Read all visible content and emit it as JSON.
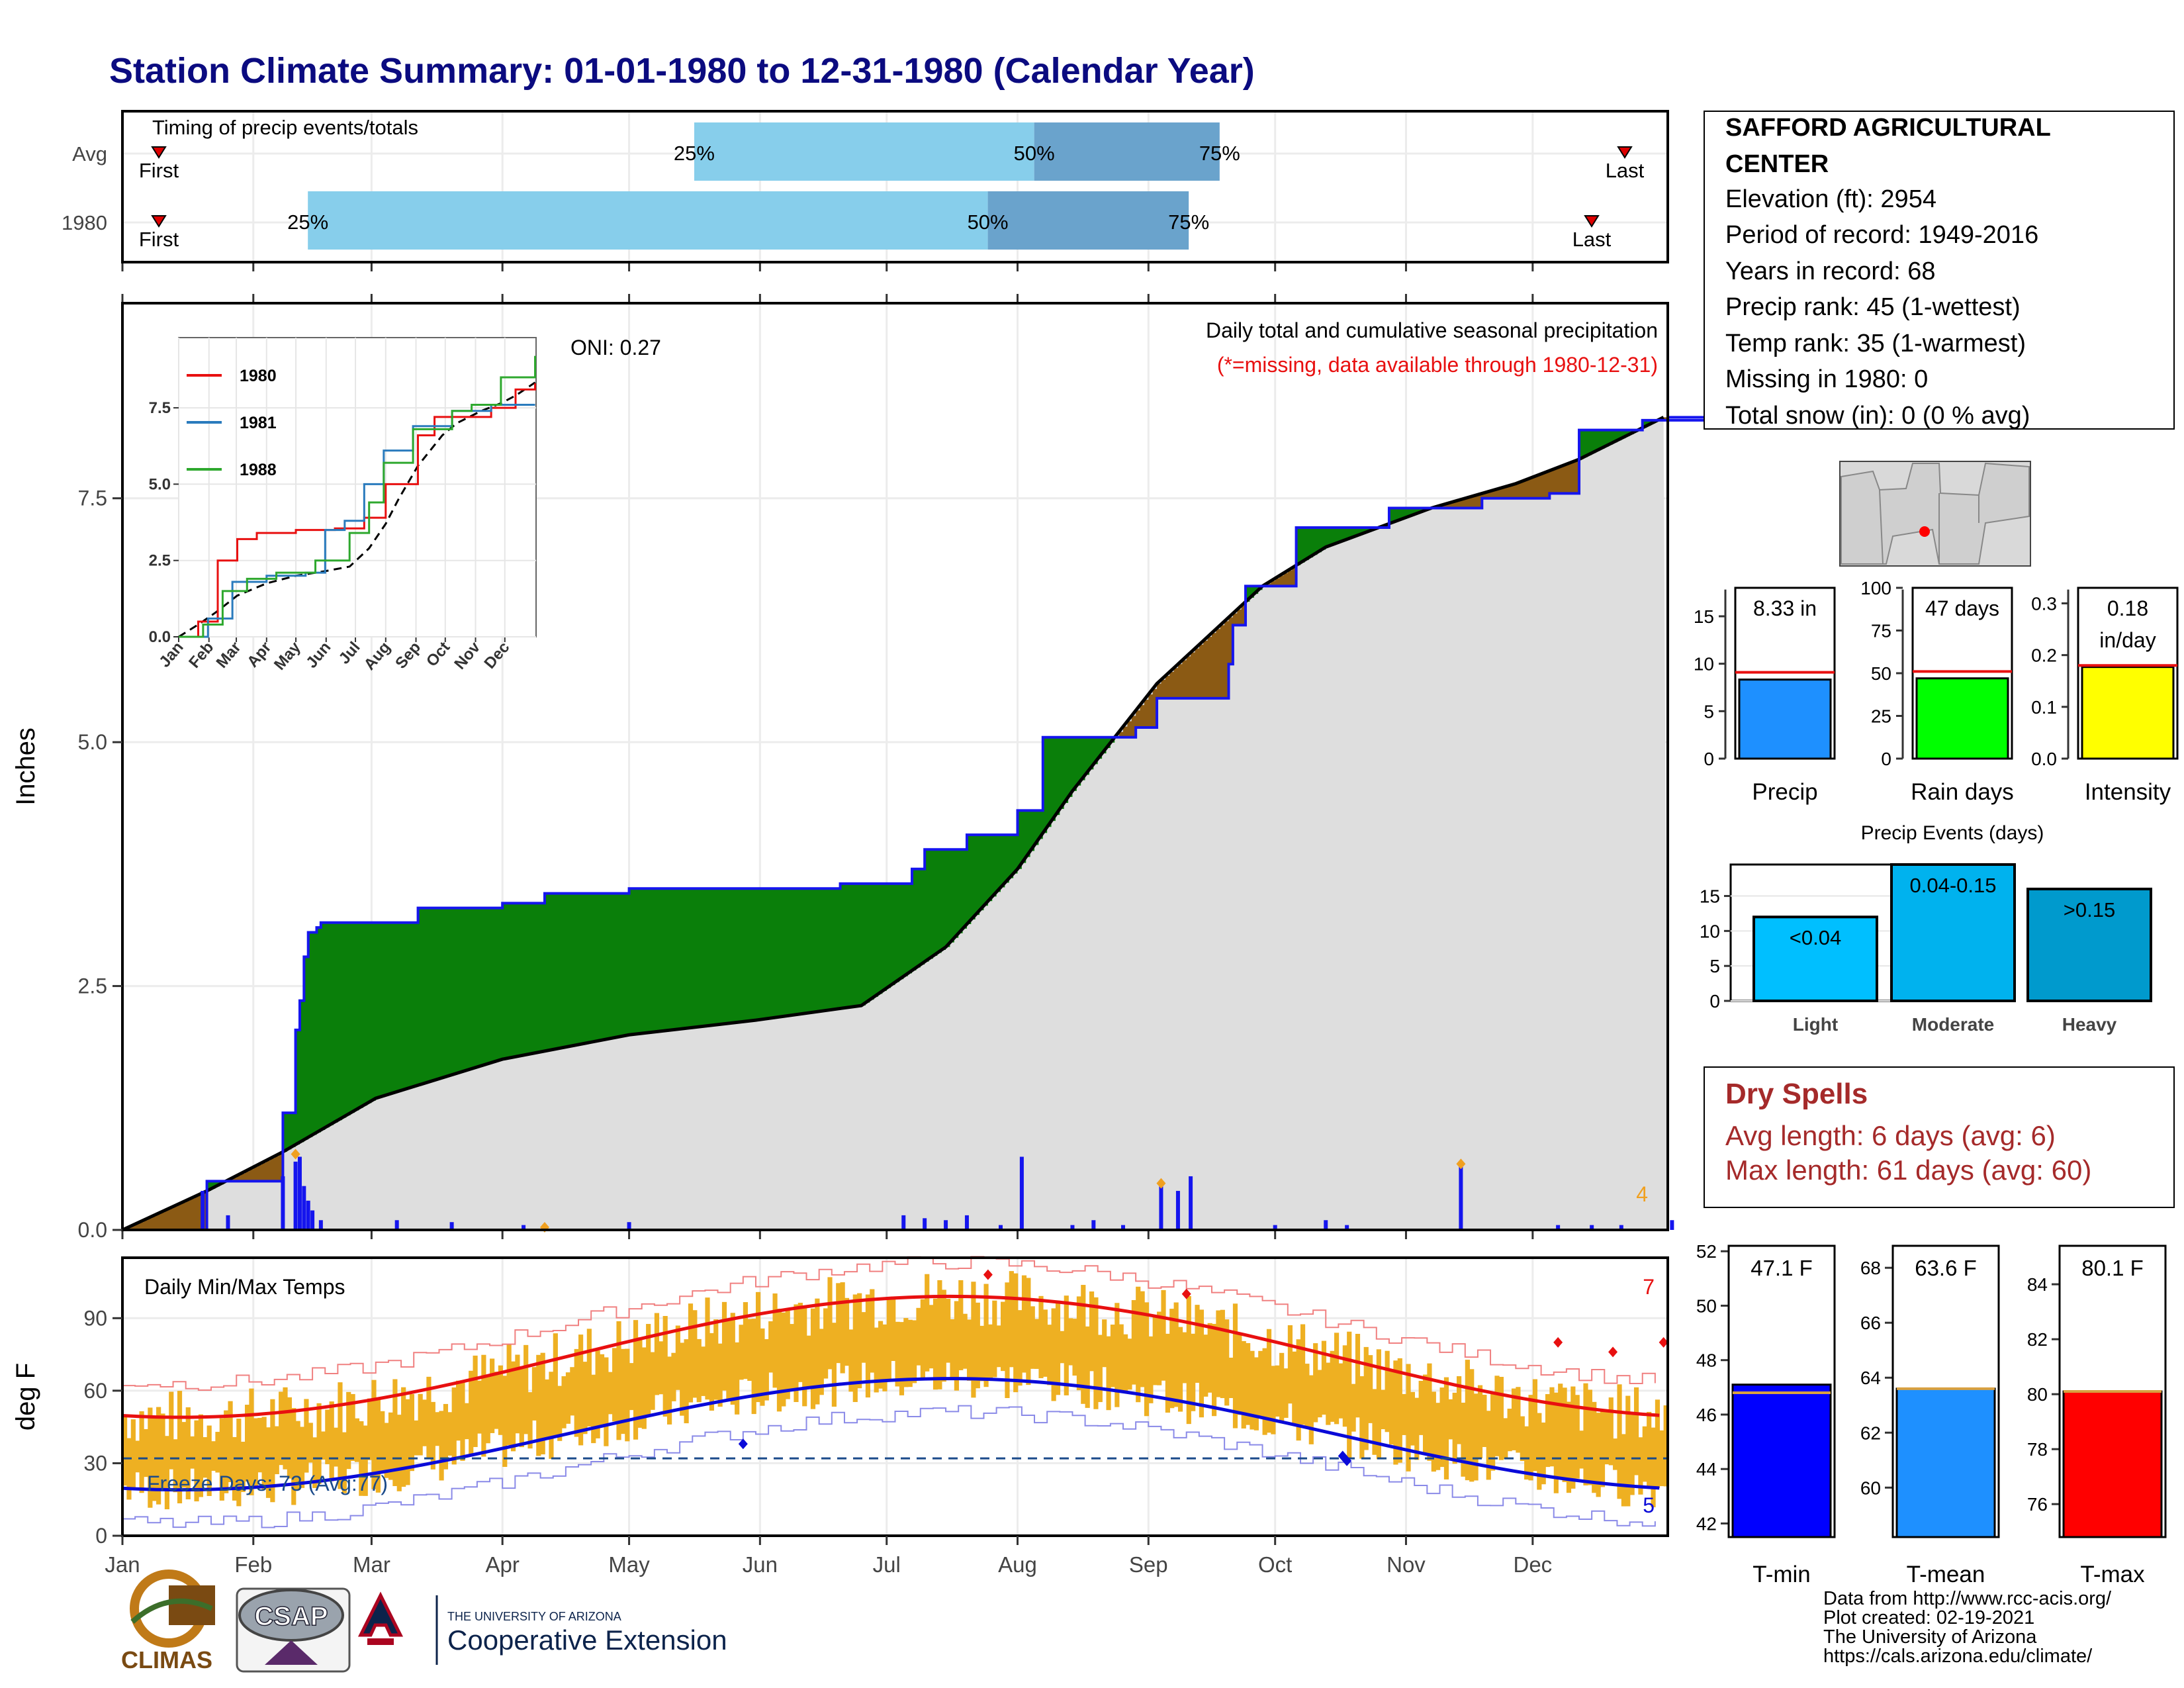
{
  "title": "Station Climate Summary: 01-01-1980 to 12-31-1980 (Calendar Year)",
  "colors": {
    "title": "#0b0b80",
    "green": "#0a7f0a",
    "brown": "#8b5a14",
    "gray": "#dedede",
    "bar_blue": "#1515ee",
    "orange": "#f0a020",
    "temp_bar": "#eeb022",
    "red": "#e81010",
    "blue_line": "#0a0ad8",
    "light_blue": "#87ceeb",
    "mid_blue": "#6aa3cc"
  },
  "timing": {
    "title": "Timing of precip events/totals",
    "rows": [
      {
        "label": "Avg",
        "p25": 0.37,
        "p50": 0.59,
        "p75": 0.71,
        "first_label": "First",
        "last_label": "Last"
      },
      {
        "label": "1980",
        "p25": 0.12,
        "p50": 0.56,
        "p75": 0.69,
        "first_label": "First",
        "last_label": "Last"
      }
    ],
    "pct_labels": [
      "25%",
      "50%",
      "75%"
    ]
  },
  "precip": {
    "ylabel": "Inches",
    "subtitle": "Daily total and cumulative seasonal precipitation",
    "missing_note": "(*=missing, data available through 1980-12-31)",
    "oni": "ONI: 0.27",
    "count_label": "4",
    "yticks": [
      "0.0",
      "2.5",
      "5.0",
      "7.5"
    ],
    "ylim": [
      0,
      9.5
    ],
    "cum_1980": [
      [
        0,
        0
      ],
      [
        20,
        0.5
      ],
      [
        38,
        1.2
      ],
      [
        41,
        2.05
      ],
      [
        42,
        2.35
      ],
      [
        43,
        2.8
      ],
      [
        44,
        3.05
      ],
      [
        46,
        3.1
      ],
      [
        47,
        3.15
      ],
      [
        70,
        3.3
      ],
      [
        90,
        3.35
      ],
      [
        100,
        3.45
      ],
      [
        120,
        3.5
      ],
      [
        170,
        3.55
      ],
      [
        187,
        3.7
      ],
      [
        190,
        3.9
      ],
      [
        200,
        4.05
      ],
      [
        212,
        4.3
      ],
      [
        218,
        5.05
      ],
      [
        240,
        5.15
      ],
      [
        245,
        5.45
      ],
      [
        262,
        5.8
      ],
      [
        263,
        6.2
      ],
      [
        266,
        6.6
      ],
      [
        278,
        7.2
      ],
      [
        300,
        7.4
      ],
      [
        322,
        7.5
      ],
      [
        338,
        7.55
      ],
      [
        345,
        8.2
      ],
      [
        360,
        8.3
      ],
      [
        375,
        8.33
      ]
    ],
    "cum_avg": [
      [
        0,
        0
      ],
      [
        20,
        0.4
      ],
      [
        38,
        0.8
      ],
      [
        60,
        1.35
      ],
      [
        90,
        1.75
      ],
      [
        120,
        2.0
      ],
      [
        150,
        2.15
      ],
      [
        175,
        2.3
      ],
      [
        195,
        2.9
      ],
      [
        212,
        3.7
      ],
      [
        225,
        4.5
      ],
      [
        245,
        5.6
      ],
      [
        255,
        6.0
      ],
      [
        270,
        6.6
      ],
      [
        285,
        7.0
      ],
      [
        310,
        7.4
      ],
      [
        330,
        7.65
      ],
      [
        345,
        7.9
      ],
      [
        365,
        8.33
      ]
    ],
    "daily": [
      [
        19,
        0.4
      ],
      [
        25,
        0.15
      ],
      [
        38,
        0.55
      ],
      [
        41,
        0.7
      ],
      [
        42,
        0.75
      ],
      [
        43,
        0.45
      ],
      [
        44,
        0.3
      ],
      [
        45,
        0.2
      ],
      [
        47,
        0.1
      ],
      [
        65,
        0.1
      ],
      [
        78,
        0.08
      ],
      [
        95,
        0.05
      ],
      [
        120,
        0.08
      ],
      [
        185,
        0.15
      ],
      [
        190,
        0.12
      ],
      [
        195,
        0.1
      ],
      [
        200,
        0.15
      ],
      [
        208,
        0.05
      ],
      [
        213,
        0.75
      ],
      [
        225,
        0.05
      ],
      [
        230,
        0.1
      ],
      [
        237,
        0.05
      ],
      [
        246,
        0.45
      ],
      [
        250,
        0.4
      ],
      [
        253,
        0.55
      ],
      [
        273,
        0.05
      ],
      [
        285,
        0.1
      ],
      [
        290,
        0.05
      ],
      [
        317,
        0.65
      ],
      [
        340,
        0.05
      ],
      [
        348,
        0.05
      ],
      [
        355,
        0.05
      ],
      [
        367,
        0.1
      ]
    ]
  },
  "inset": {
    "series": [
      {
        "name": "1980",
        "color": "#e81010"
      },
      {
        "name": "1981",
        "color": "#2a7bbd"
      },
      {
        "name": "1988",
        "color": "#2ea82e"
      }
    ],
    "yticks": [
      "0.0",
      "2.5",
      "5.0",
      "7.5"
    ],
    "months": [
      "Jan",
      "Feb",
      "Mar",
      "Apr",
      "May",
      "Jun",
      "Jul",
      "Aug",
      "Sep",
      "Oct",
      "Nov",
      "Dec"
    ],
    "line_1980": [
      [
        0,
        0
      ],
      [
        20,
        0.5
      ],
      [
        40,
        2.5
      ],
      [
        60,
        3.2
      ],
      [
        80,
        3.4
      ],
      [
        120,
        3.5
      ],
      [
        160,
        3.55
      ],
      [
        190,
        3.9
      ],
      [
        212,
        5.0
      ],
      [
        245,
        6.6
      ],
      [
        262,
        7.2
      ],
      [
        320,
        7.5
      ],
      [
        345,
        8.1
      ],
      [
        365,
        8.3
      ]
    ],
    "line_1981": [
      [
        0,
        0
      ],
      [
        30,
        0.6
      ],
      [
        55,
        1.8
      ],
      [
        90,
        2.0
      ],
      [
        130,
        2.1
      ],
      [
        150,
        3.5
      ],
      [
        170,
        3.8
      ],
      [
        190,
        5.0
      ],
      [
        210,
        6.1
      ],
      [
        240,
        6.9
      ],
      [
        280,
        7.4
      ],
      [
        320,
        7.6
      ],
      [
        340,
        7.6
      ],
      [
        365,
        7.6
      ]
    ],
    "line_1988": [
      [
        0,
        0
      ],
      [
        25,
        0.4
      ],
      [
        45,
        1.5
      ],
      [
        70,
        1.9
      ],
      [
        100,
        2.1
      ],
      [
        140,
        2.5
      ],
      [
        175,
        3.4
      ],
      [
        195,
        4.4
      ],
      [
        210,
        5.7
      ],
      [
        240,
        6.8
      ],
      [
        280,
        7.4
      ],
      [
        300,
        7.6
      ],
      [
        330,
        8.5
      ],
      [
        365,
        9.2
      ]
    ]
  },
  "temps": {
    "title": "Daily Min/Max Temps",
    "ylabel": "deg F",
    "yticks": [
      "0",
      "30",
      "60",
      "90"
    ],
    "ylim": [
      0,
      115
    ],
    "freeze_label": "Freeze Days: 73 (Avg:77)",
    "freeze_line": 32,
    "count_hi": "7",
    "count_lo": "5",
    "months": [
      "Jan",
      "Feb",
      "Mar",
      "Apr",
      "May",
      "Jun",
      "Jul",
      "Aug",
      "Sep",
      "Oct",
      "Nov",
      "Dec"
    ]
  },
  "station": {
    "name": "SAFFORD AGRICULTURAL CENTER",
    "lines": [
      "Elevation (ft): 2954",
      "Period of record: 1949-2016",
      "Years in record: 68",
      "Precip rank: 45 (1-wettest)",
      "Temp rank: 35 (1-warmest)",
      "Missing in 1980: 0",
      "Total snow (in): 0 (0 % avg)"
    ]
  },
  "summary_bars": [
    {
      "label": "Precip",
      "value_text": "8.33 in",
      "value": 8.33,
      "avg": 9.1,
      "ymax": 18,
      "yticks": [
        "0",
        "5",
        "10",
        "15"
      ],
      "tick_vals": [
        0,
        5,
        10,
        15
      ],
      "color": "#1e90ff"
    },
    {
      "label": "Rain days",
      "value_text": "47 days",
      "value": 47,
      "avg": 51,
      "ymax": 100,
      "yticks": [
        "0",
        "25",
        "50",
        "75",
        "100"
      ],
      "tick_vals": [
        0,
        25,
        50,
        75,
        100
      ],
      "color": "#00ff00"
    },
    {
      "label": "Intensity",
      "value_text": "0.18",
      "value_text2": "in/day",
      "value": 0.177,
      "avg": 0.18,
      "ymax": 0.33,
      "yticks": [
        "0.0",
        "0.1",
        "0.2",
        "0.3"
      ],
      "tick_vals": [
        0,
        0.1,
        0.2,
        0.3
      ],
      "color": "#ffff00"
    }
  ],
  "precip_events": {
    "title": "Precip Events (days)",
    "yticks": [
      "0",
      "5",
      "10",
      "15"
    ],
    "ymax": 19.5,
    "bars": [
      {
        "label": "Light",
        "value_text": "<0.04",
        "value": 12,
        "color": "#00bfff"
      },
      {
        "label": "Moderate",
        "value_text": "0.04-0.15",
        "value": 19.5,
        "color": "#00b2ee"
      },
      {
        "label": "Heavy",
        "value_text": ">0.15",
        "value": 16,
        "color": "#009acd"
      }
    ]
  },
  "dry_spells": {
    "title": "Dry Spells",
    "avg": "Avg length: 6 days (avg: 6)",
    "max": "Max length: 61 days (avg: 60)"
  },
  "temp_bars": [
    {
      "label": "T-min",
      "value_text": "47.1 F",
      "value": 47.1,
      "avg": 46.8,
      "ymin": 41.5,
      "ymax": 52.2,
      "yticks": [
        "42",
        "44",
        "46",
        "48",
        "50",
        "52"
      ],
      "tick_vals": [
        42,
        44,
        46,
        48,
        50,
        52
      ],
      "color": "#0000ff"
    },
    {
      "label": "T-mean",
      "value_text": "63.6 F",
      "value": 63.6,
      "avg": 63.6,
      "ymin": 58.2,
      "ymax": 68.8,
      "yticks": [
        "60",
        "62",
        "64",
        "66",
        "68"
      ],
      "tick_vals": [
        60,
        62,
        64,
        66,
        68
      ],
      "color": "#1e90ff"
    },
    {
      "label": "T-max",
      "value_text": "80.1 F",
      "value": 80.1,
      "avg": 80.1,
      "ymin": 74.8,
      "ymax": 85.4,
      "yticks": [
        "76",
        "78",
        "80",
        "82",
        "84"
      ],
      "tick_vals": [
        76,
        78,
        80,
        82,
        84
      ],
      "color": "#ff0000"
    }
  ],
  "footer": {
    "lines": [
      "Data from http://www.rcc-acis.org/",
      "Plot created: 02-19-2021",
      "The University of Arizona",
      "https://cals.arizona.edu/climate/"
    ],
    "climas": "CLIMAS",
    "csap": "CSAP",
    "ua_small": "THE UNIVERSITY OF ARIZONA",
    "ua_big": "Cooperative Extension"
  }
}
